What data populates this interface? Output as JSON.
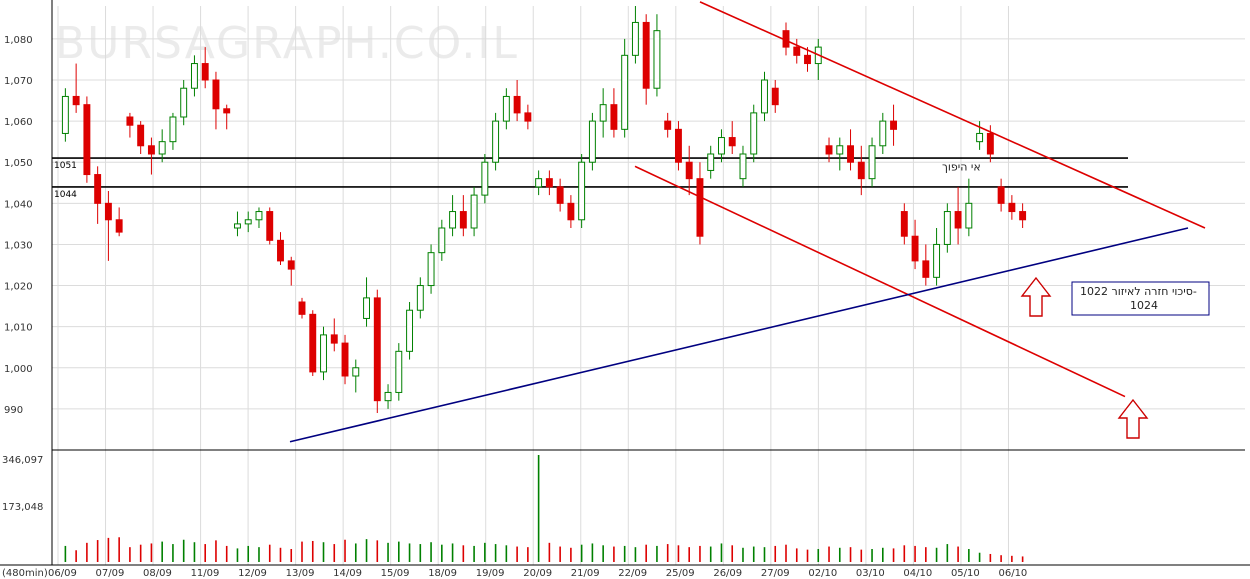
{
  "watermark": "BURSAGRAPH.CO.IL",
  "chart_data": {
    "type": "candlestick",
    "ylim": [
      980,
      1088
    ],
    "y_ticks": [
      990,
      1000,
      1010,
      1020,
      1030,
      1040,
      1050,
      1060,
      1070,
      1080
    ],
    "y_tick_labels": [
      "990",
      "1,000",
      "1,010",
      "1,020",
      "1,030",
      "1,040",
      "1,050",
      "1,060",
      "1,070",
      "1,080"
    ],
    "x_tick_labels": [
      "06/09",
      "07/09",
      "08/09",
      "11/09",
      "12/09",
      "13/09",
      "14/09",
      "15/09",
      "18/09",
      "19/09",
      "20/09",
      "21/09",
      "22/09",
      "25/09",
      "26/09",
      "27/09",
      "02/10",
      "03/10",
      "04/10",
      "05/10",
      "06/10"
    ],
    "interval_label": "(480min)",
    "volume_axis_labels": [
      "346,097",
      "173,048"
    ],
    "volume_max": 346097,
    "horizontal_levels": [
      {
        "value": 1051,
        "label": "1051"
      },
      {
        "value": 1044,
        "label": "1044"
      }
    ],
    "trendlines": [
      {
        "name": "upper-channel",
        "color": "#dd0000",
        "points": [
          {
            "idx": 0.0,
            "value": 1089
          },
          {
            "idx": 1.0,
            "value": 1034
          }
        ]
      },
      {
        "name": "lower-channel",
        "color": "#dd0000",
        "points": [
          {
            "idx": 0.0,
            "value": 1049
          },
          {
            "idx": 1.0,
            "value": 993
          }
        ]
      },
      {
        "name": "support",
        "color": "#000080",
        "points": [
          {
            "idx": 0.0,
            "value": 982
          },
          {
            "idx": 1.0,
            "value": 1034
          }
        ]
      }
    ],
    "annotations": [
      {
        "text": "אי היפוך",
        "anchor_value": 1047
      },
      {
        "text": "סיכוי חזרה לאיזור 1022-",
        "text2": "1024"
      }
    ],
    "candles": [
      [
        1057,
        1068,
        1055,
        1066
      ],
      [
        1066,
        1074,
        1062,
        1064
      ],
      [
        1064,
        1066,
        1045,
        1047
      ],
      [
        1047,
        1049,
        1035,
        1040
      ],
      [
        1040,
        1043,
        1026,
        1036
      ],
      [
        1036,
        1039,
        1032,
        1033
      ],
      [
        1061,
        1062,
        1056,
        1059
      ],
      [
        1059,
        1060,
        1052,
        1054
      ],
      [
        1054,
        1056,
        1047,
        1052
      ],
      [
        1052,
        1058,
        1050,
        1055
      ],
      [
        1055,
        1062,
        1053,
        1061
      ],
      [
        1061,
        1070,
        1059,
        1068
      ],
      [
        1068,
        1076,
        1066,
        1074
      ],
      [
        1074,
        1078,
        1068,
        1070
      ],
      [
        1070,
        1072,
        1058,
        1063
      ],
      [
        1063,
        1064,
        1058,
        1062
      ],
      [
        1034,
        1038,
        1032,
        1035
      ],
      [
        1035,
        1038,
        1033,
        1036
      ],
      [
        1036,
        1039,
        1034,
        1038
      ],
      [
        1038,
        1039,
        1030,
        1031
      ],
      [
        1031,
        1033,
        1025,
        1026
      ],
      [
        1026,
        1027,
        1020,
        1024
      ],
      [
        1016,
        1017,
        1012,
        1013
      ],
      [
        1013,
        1014,
        998,
        999
      ],
      [
        999,
        1010,
        997,
        1008
      ],
      [
        1008,
        1012,
        1004,
        1006
      ],
      [
        1006,
        1008,
        996,
        998
      ],
      [
        998,
        1002,
        994,
        1000
      ],
      [
        1012,
        1022,
        1010,
        1017
      ],
      [
        1017,
        1019,
        989,
        992
      ],
      [
        992,
        996,
        990,
        994
      ],
      [
        994,
        1006,
        992,
        1004
      ],
      [
        1004,
        1016,
        1002,
        1014
      ],
      [
        1014,
        1022,
        1012,
        1020
      ],
      [
        1020,
        1030,
        1018,
        1028
      ],
      [
        1028,
        1036,
        1026,
        1034
      ],
      [
        1034,
        1042,
        1032,
        1038
      ],
      [
        1038,
        1042,
        1032,
        1034
      ],
      [
        1034,
        1044,
        1032,
        1042
      ],
      [
        1042,
        1052,
        1040,
        1050
      ],
      [
        1050,
        1062,
        1048,
        1060
      ],
      [
        1060,
        1068,
        1058,
        1066
      ],
      [
        1066,
        1070,
        1060,
        1062
      ],
      [
        1062,
        1064,
        1058,
        1060
      ],
      [
        1044,
        1048,
        1042,
        1046
      ],
      [
        1046,
        1048,
        1042,
        1044
      ],
      [
        1044,
        1046,
        1038,
        1040
      ],
      [
        1040,
        1042,
        1034,
        1036
      ],
      [
        1036,
        1052,
        1034,
        1050
      ],
      [
        1050,
        1062,
        1048,
        1060
      ],
      [
        1060,
        1068,
        1056,
        1064
      ],
      [
        1064,
        1068,
        1056,
        1058
      ],
      [
        1058,
        1080,
        1056,
        1076
      ],
      [
        1076,
        1088,
        1074,
        1084
      ],
      [
        1084,
        1086,
        1064,
        1068
      ],
      [
        1068,
        1086,
        1066,
        1082
      ],
      [
        1060,
        1062,
        1056,
        1058
      ],
      [
        1058,
        1060,
        1048,
        1050
      ],
      [
        1050,
        1054,
        1042,
        1046
      ],
      [
        1046,
        1050,
        1030,
        1032
      ],
      [
        1048,
        1054,
        1046,
        1052
      ],
      [
        1052,
        1058,
        1050,
        1056
      ],
      [
        1056,
        1060,
        1052,
        1054
      ],
      [
        1046,
        1054,
        1044,
        1052
      ],
      [
        1052,
        1064,
        1050,
        1062
      ],
      [
        1062,
        1072,
        1060,
        1070
      ],
      [
        1068,
        1070,
        1062,
        1064
      ],
      [
        1082,
        1084,
        1076,
        1078
      ],
      [
        1078,
        1080,
        1074,
        1076
      ],
      [
        1076,
        1078,
        1072,
        1074
      ],
      [
        1074,
        1080,
        1070,
        1078
      ],
      [
        1054,
        1056,
        1050,
        1052
      ],
      [
        1052,
        1056,
        1048,
        1054
      ],
      [
        1054,
        1058,
        1048,
        1050
      ],
      [
        1050,
        1054,
        1042,
        1046
      ],
      [
        1046,
        1056,
        1044,
        1054
      ],
      [
        1054,
        1062,
        1052,
        1060
      ],
      [
        1060,
        1064,
        1054,
        1058
      ],
      [
        1038,
        1040,
        1030,
        1032
      ],
      [
        1032,
        1036,
        1024,
        1026
      ],
      [
        1026,
        1030,
        1020,
        1022
      ],
      [
        1022,
        1034,
        1020,
        1030
      ],
      [
        1030,
        1040,
        1028,
        1038
      ],
      [
        1038,
        1044,
        1030,
        1034
      ],
      [
        1034,
        1046,
        1032,
        1040
      ],
      [
        1055,
        1060,
        1053,
        1057
      ],
      [
        1057,
        1059,
        1050,
        1052
      ],
      [
        1044,
        1046,
        1038,
        1040
      ],
      [
        1040,
        1042,
        1036,
        1038
      ],
      [
        1038,
        1040,
        1034,
        1036
      ]
    ],
    "volumes": [
      52000,
      38000,
      62000,
      71000,
      78000,
      80000,
      48000,
      56000,
      60000,
      66000,
      58000,
      72000,
      64000,
      58000,
      70000,
      52000,
      44000,
      52000,
      48000,
      56000,
      46000,
      42000,
      66000,
      68000,
      64000,
      58000,
      72000,
      60000,
      74000,
      70000,
      62000,
      66000,
      60000,
      58000,
      64000,
      56000,
      60000,
      54000,
      52000,
      62000,
      58000,
      54000,
      50000,
      48000,
      346097,
      62000,
      50000,
      46000,
      56000,
      60000,
      54000,
      50000,
      52000,
      48000,
      56000,
      52000,
      58000,
      54000,
      48000,
      52000,
      50000,
      60000,
      54000,
      46000,
      50000,
      48000,
      52000,
      56000,
      44000,
      40000,
      42000,
      50000,
      46000,
      48000,
      40000,
      42000,
      46000,
      44000,
      54000,
      52000,
      48000,
      46000,
      58000,
      50000,
      42000,
      30000,
      26000,
      22000,
      20000,
      18000
    ]
  }
}
